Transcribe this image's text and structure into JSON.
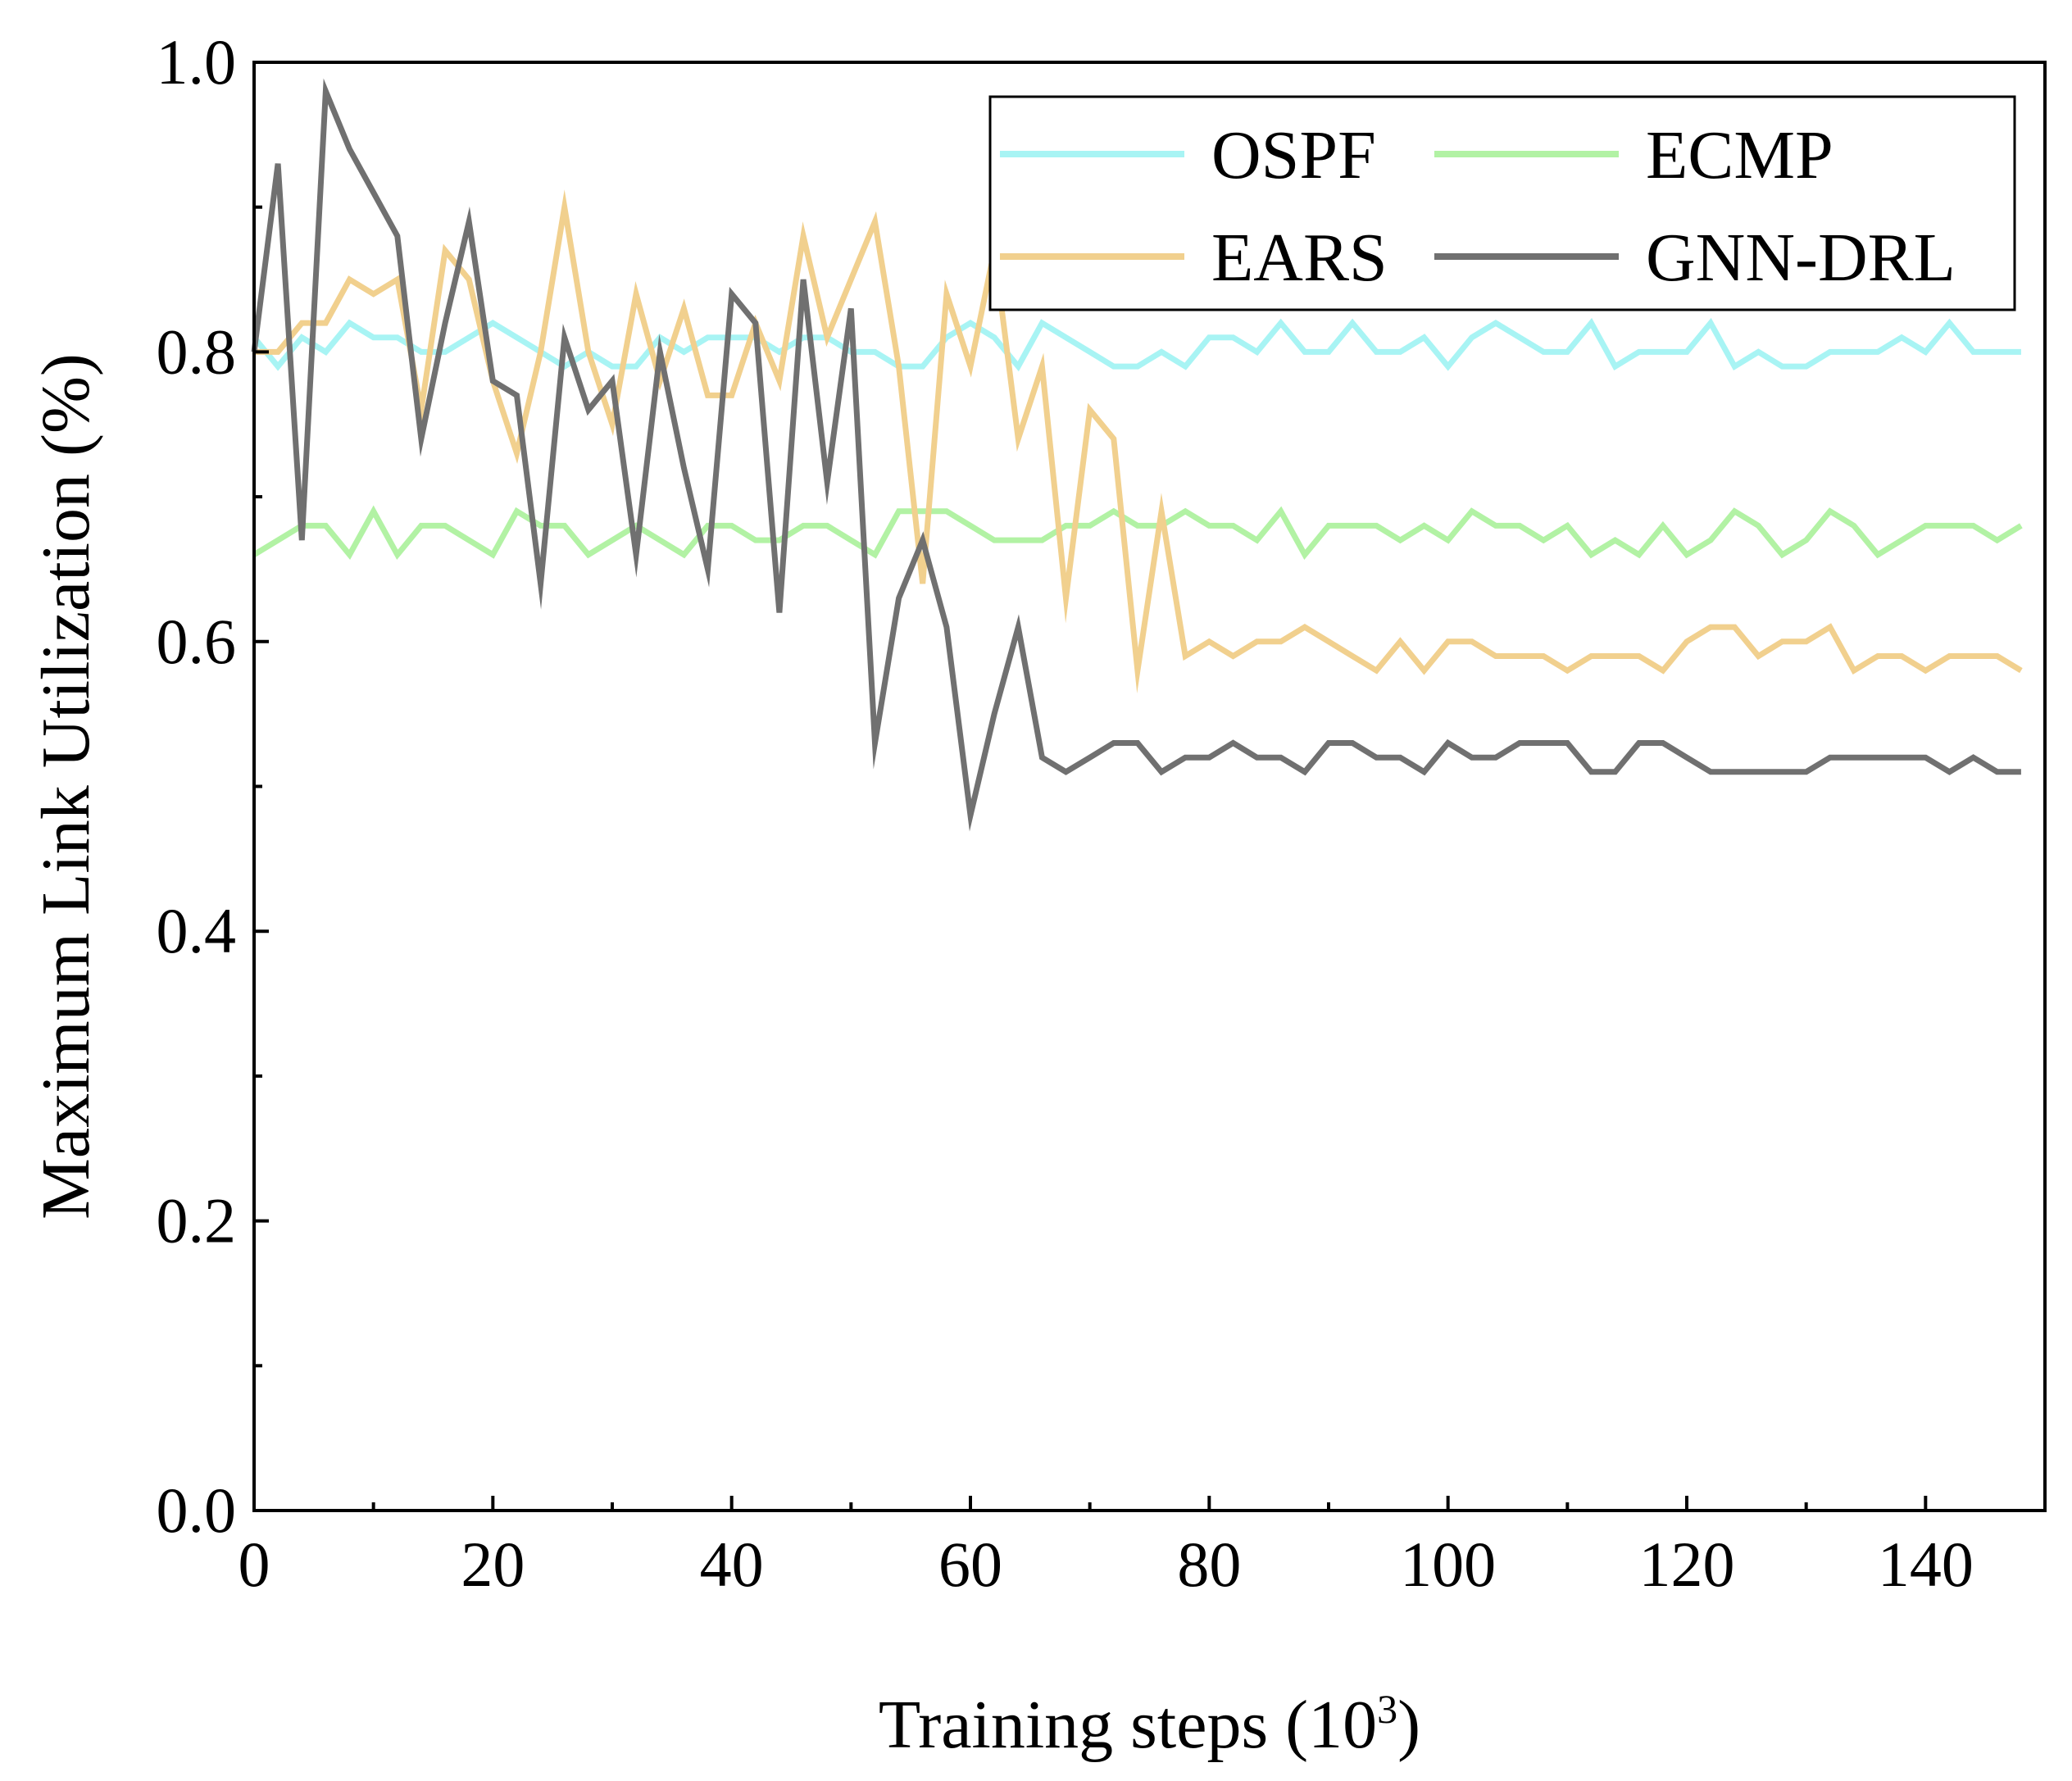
{
  "chart_data": {
    "type": "line",
    "xlabel": "Training steps (10",
    "xlabel_sup": "3",
    "xlabel_close": ")",
    "ylabel": "Maximum Link Utilization (%)",
    "xlim": [
      0,
      150
    ],
    "ylim": [
      0.0,
      1.0
    ],
    "xticks": [
      0,
      20,
      40,
      60,
      80,
      100,
      120,
      140
    ],
    "xtick_labels": [
      "0",
      "20",
      "40",
      "60",
      "80",
      "100",
      "120",
      "140"
    ],
    "yticks": [
      0.0,
      0.2,
      0.4,
      0.6,
      0.8,
      1.0
    ],
    "ytick_labels": [
      "0.0",
      "0.2",
      "0.4",
      "0.6",
      "0.8",
      "1.0"
    ],
    "y_minor_ticks": [
      0.1,
      0.3,
      0.5,
      0.7,
      0.9
    ],
    "x_minor_ticks": [
      10,
      30,
      50,
      70,
      90,
      110,
      130
    ],
    "legend_position": "top-right",
    "legend_columns": 2,
    "x": [
      0,
      2,
      4,
      6,
      8,
      10,
      12,
      14,
      16,
      18,
      20,
      22,
      24,
      26,
      28,
      30,
      32,
      34,
      36,
      38,
      40,
      42,
      44,
      46,
      48,
      50,
      52,
      54,
      56,
      58,
      60,
      62,
      64,
      66,
      68,
      70,
      72,
      74,
      76,
      78,
      80,
      82,
      84,
      86,
      88,
      90,
      92,
      94,
      96,
      98,
      100,
      102,
      104,
      106,
      108,
      110,
      112,
      114,
      116,
      118,
      120,
      122,
      124,
      126,
      128,
      130,
      132,
      134,
      136,
      138,
      140,
      142,
      144,
      146,
      148
    ],
    "series": [
      {
        "name": "OSPF",
        "color": "#a8f4f4",
        "values": [
          0.81,
          0.79,
          0.81,
          0.8,
          0.82,
          0.81,
          0.81,
          0.8,
          0.8,
          0.81,
          0.82,
          0.81,
          0.8,
          0.79,
          0.8,
          0.79,
          0.79,
          0.81,
          0.8,
          0.81,
          0.81,
          0.81,
          0.8,
          0.81,
          0.81,
          0.8,
          0.8,
          0.79,
          0.79,
          0.81,
          0.82,
          0.81,
          0.79,
          0.82,
          0.81,
          0.8,
          0.79,
          0.79,
          0.8,
          0.79,
          0.81,
          0.81,
          0.8,
          0.82,
          0.8,
          0.8,
          0.82,
          0.8,
          0.8,
          0.81,
          0.79,
          0.81,
          0.82,
          0.81,
          0.8,
          0.8,
          0.82,
          0.79,
          0.8,
          0.8,
          0.8,
          0.82,
          0.79,
          0.8,
          0.79,
          0.79,
          0.8,
          0.8,
          0.8,
          0.81,
          0.8,
          0.82,
          0.8,
          0.8,
          0.8
        ]
      },
      {
        "name": "ECMP",
        "color": "#b2f2a4",
        "values": [
          0.66,
          0.67,
          0.68,
          0.68,
          0.66,
          0.69,
          0.66,
          0.68,
          0.68,
          0.67,
          0.66,
          0.69,
          0.68,
          0.68,
          0.66,
          0.67,
          0.68,
          0.67,
          0.66,
          0.68,
          0.68,
          0.67,
          0.67,
          0.68,
          0.68,
          0.67,
          0.66,
          0.69,
          0.69,
          0.69,
          0.68,
          0.67,
          0.67,
          0.67,
          0.68,
          0.68,
          0.69,
          0.68,
          0.68,
          0.69,
          0.68,
          0.68,
          0.67,
          0.69,
          0.66,
          0.68,
          0.68,
          0.68,
          0.67,
          0.68,
          0.67,
          0.69,
          0.68,
          0.68,
          0.67,
          0.68,
          0.66,
          0.67,
          0.66,
          0.68,
          0.66,
          0.67,
          0.69,
          0.68,
          0.66,
          0.67,
          0.69,
          0.68,
          0.66,
          0.67,
          0.68,
          0.68,
          0.68,
          0.67,
          0.68
        ]
      },
      {
        "name": "EARS",
        "color": "#f1d08e",
        "values": [
          0.8,
          0.8,
          0.82,
          0.82,
          0.85,
          0.84,
          0.85,
          0.76,
          0.87,
          0.85,
          0.78,
          0.73,
          0.8,
          0.9,
          0.8,
          0.75,
          0.84,
          0.78,
          0.83,
          0.77,
          0.77,
          0.82,
          0.78,
          0.88,
          0.81,
          0.85,
          0.89,
          0.79,
          0.64,
          0.84,
          0.79,
          0.87,
          0.74,
          0.79,
          0.63,
          0.76,
          0.74,
          0.58,
          0.69,
          0.59,
          0.6,
          0.59,
          0.6,
          0.6,
          0.61,
          0.6,
          0.59,
          0.58,
          0.6,
          0.58,
          0.6,
          0.6,
          0.59,
          0.59,
          0.59,
          0.58,
          0.59,
          0.59,
          0.59,
          0.58,
          0.6,
          0.61,
          0.61,
          0.59,
          0.6,
          0.6,
          0.61,
          0.58,
          0.59,
          0.59,
          0.58,
          0.59,
          0.59,
          0.59,
          0.58
        ]
      },
      {
        "name": "GNN-DRL",
        "color": "#707070",
        "values": [
          0.8,
          0.93,
          0.67,
          0.98,
          0.94,
          0.91,
          0.88,
          0.74,
          0.82,
          0.89,
          0.78,
          0.77,
          0.64,
          0.81,
          0.76,
          0.78,
          0.66,
          0.8,
          0.72,
          0.65,
          0.84,
          0.82,
          0.62,
          0.85,
          0.71,
          0.83,
          0.53,
          0.63,
          0.67,
          0.61,
          0.48,
          0.55,
          0.61,
          0.52,
          0.51,
          0.52,
          0.53,
          0.53,
          0.51,
          0.52,
          0.52,
          0.53,
          0.52,
          0.52,
          0.51,
          0.53,
          0.53,
          0.52,
          0.52,
          0.51,
          0.53,
          0.52,
          0.52,
          0.53,
          0.53,
          0.53,
          0.51,
          0.51,
          0.53,
          0.53,
          0.52,
          0.51,
          0.51,
          0.51,
          0.51,
          0.51,
          0.52,
          0.52,
          0.52,
          0.52,
          0.52,
          0.51,
          0.52,
          0.51,
          0.51
        ]
      }
    ]
  }
}
